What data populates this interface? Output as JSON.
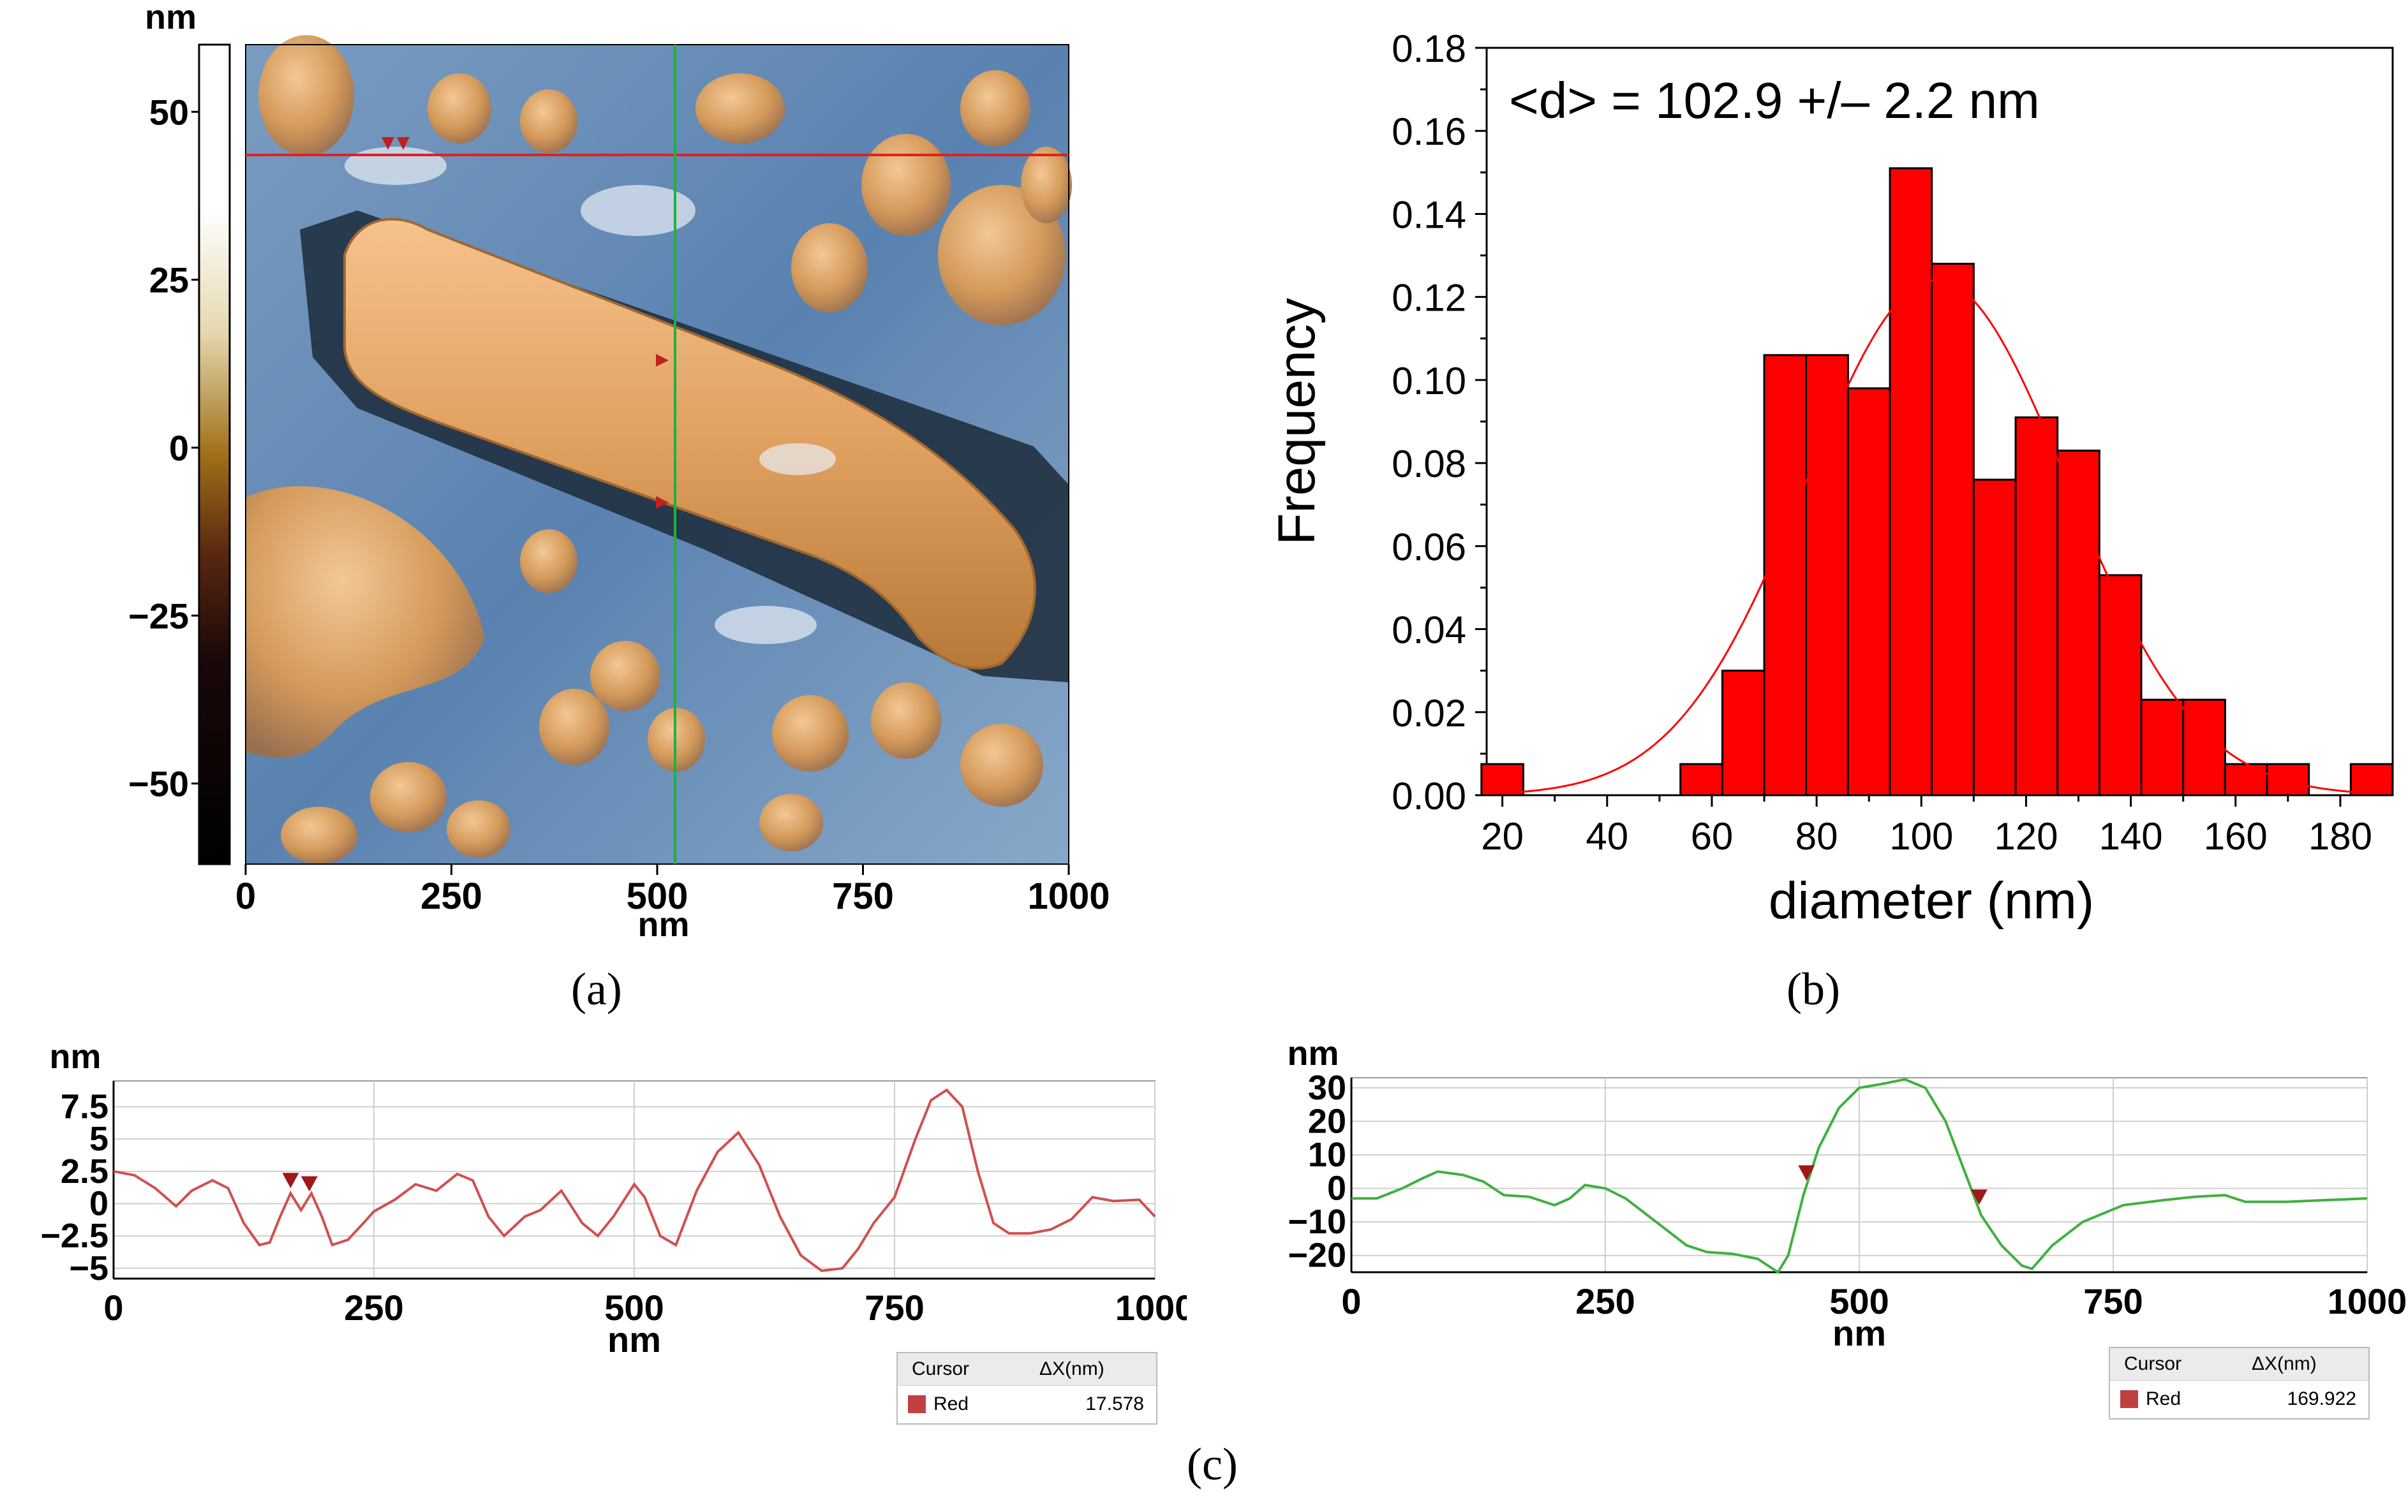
{
  "panels": {
    "a": {
      "caption": "(a)",
      "colorbar": {
        "unit": "nm",
        "ticks": [
          50,
          25,
          0,
          -25,
          -50
        ],
        "tick_labels": [
          "50",
          "25",
          "0",
          "−25",
          "−50"
        ],
        "range": [
          -62,
          60
        ]
      },
      "x_axis": {
        "ticks": [
          0,
          250,
          500,
          750,
          1000
        ],
        "tick_labels": [
          "0",
          "250",
          "500",
          "750",
          "1000"
        ],
        "unit": "nm",
        "range": [
          0,
          1000
        ]
      },
      "scan_lines": {
        "horizontal_color": "#e02020",
        "vertical_color": "#20b040"
      }
    },
    "b": {
      "caption": "(b)",
      "chart_data": {
        "type": "bar",
        "title": "",
        "annotation": "<d> = 102.9 +/– 2.2 nm",
        "xlabel": "diameter (nm)",
        "ylabel": "Frequency",
        "xlim": [
          17,
          190
        ],
        "ylim": [
          0,
          0.18
        ],
        "x_ticks": [
          20,
          40,
          60,
          80,
          100,
          120,
          140,
          160,
          180
        ],
        "y_ticks": [
          0.0,
          0.02,
          0.04,
          0.06,
          0.08,
          0.1,
          0.12,
          0.14,
          0.16,
          0.18
        ],
        "y_tick_labels": [
          "0.00",
          "0.02",
          "0.04",
          "0.06",
          "0.08",
          "0.10",
          "0.12",
          "0.14",
          "0.16",
          "0.18"
        ],
        "bin_width": 8,
        "bin_centers": [
          20,
          58,
          66,
          74,
          82,
          90,
          98,
          106,
          114,
          122,
          130,
          138,
          146,
          154,
          162,
          170,
          186
        ],
        "values": [
          0.0075,
          0.0075,
          0.03,
          0.106,
          0.106,
          0.098,
          0.151,
          0.128,
          0.076,
          0.091,
          0.083,
          0.053,
          0.023,
          0.023,
          0.0075,
          0.0075,
          0.0075
        ],
        "bar_color": "#ff0000",
        "fit": {
          "type": "gaussian",
          "mean": 102.9,
          "sigma": 25,
          "amplitude": 0.124,
          "color": "#ff0000"
        }
      }
    },
    "c": {
      "caption": "(c)",
      "left": {
        "unit": "nm",
        "y_ticks": [
          7.5,
          5,
          2.5,
          0,
          -2.5,
          -5
        ],
        "y_tick_labels": [
          "7.5",
          "5",
          "2.5",
          "0",
          "−2.5",
          "−5"
        ],
        "ylim": [
          -5.8,
          9.5
        ],
        "x_ticks": [
          0,
          250,
          500,
          750,
          1000
        ],
        "x_tick_labels": [
          "0",
          "250",
          "500",
          "750",
          "1000"
        ],
        "xlim": [
          0,
          1000
        ],
        "xlabel": "nm",
        "line_color": "#d05050",
        "cursors": [
          170,
          188
        ],
        "table": {
          "col1": "Cursor",
          "col2": "ΔX(nm)",
          "row_label": "Red",
          "row_value": "17.578",
          "swatch_color": "#c04040"
        },
        "profile": [
          [
            0,
            2.5
          ],
          [
            20,
            2.2
          ],
          [
            40,
            1.2
          ],
          [
            60,
            -0.2
          ],
          [
            75,
            1.0
          ],
          [
            95,
            1.8
          ],
          [
            110,
            1.2
          ],
          [
            125,
            -1.5
          ],
          [
            140,
            -3.2
          ],
          [
            150,
            -3.0
          ],
          [
            160,
            -1.0
          ],
          [
            170,
            0.8
          ],
          [
            180,
            -0.5
          ],
          [
            190,
            0.8
          ],
          [
            200,
            -1.0
          ],
          [
            210,
            -3.2
          ],
          [
            225,
            -2.8
          ],
          [
            240,
            -1.5
          ],
          [
            250,
            -0.6
          ],
          [
            270,
            0.3
          ],
          [
            290,
            1.5
          ],
          [
            310,
            1.0
          ],
          [
            330,
            2.3
          ],
          [
            345,
            1.8
          ],
          [
            360,
            -1.0
          ],
          [
            375,
            -2.5
          ],
          [
            395,
            -1.0
          ],
          [
            410,
            -0.5
          ],
          [
            430,
            1.0
          ],
          [
            450,
            -1.5
          ],
          [
            465,
            -2.5
          ],
          [
            480,
            -1.0
          ],
          [
            500,
            1.5
          ],
          [
            510,
            0.5
          ],
          [
            525,
            -2.5
          ],
          [
            540,
            -3.2
          ],
          [
            560,
            1.0
          ],
          [
            580,
            4.0
          ],
          [
            600,
            5.5
          ],
          [
            620,
            3.0
          ],
          [
            640,
            -1.0
          ],
          [
            660,
            -4.0
          ],
          [
            680,
            -5.2
          ],
          [
            700,
            -5.0
          ],
          [
            715,
            -3.5
          ],
          [
            730,
            -1.5
          ],
          [
            750,
            0.5
          ],
          [
            770,
            5.0
          ],
          [
            785,
            8.0
          ],
          [
            800,
            8.8
          ],
          [
            815,
            7.5
          ],
          [
            830,
            2.5
          ],
          [
            845,
            -1.5
          ],
          [
            860,
            -2.3
          ],
          [
            880,
            -2.3
          ],
          [
            900,
            -2.0
          ],
          [
            920,
            -1.2
          ],
          [
            940,
            0.5
          ],
          [
            960,
            0.2
          ],
          [
            985,
            0.3
          ],
          [
            1000,
            -1.0
          ]
        ]
      },
      "right": {
        "unit": "nm",
        "y_ticks": [
          30,
          20,
          10,
          0,
          -10,
          -20
        ],
        "y_tick_labels": [
          "30",
          "20",
          "10",
          "0",
          "−10",
          "−20"
        ],
        "ylim": [
          -25,
          33
        ],
        "x_ticks": [
          0,
          250,
          500,
          750,
          1000
        ],
        "x_tick_labels": [
          "0",
          "250",
          "500",
          "750",
          "1000"
        ],
        "xlim": [
          0,
          1000
        ],
        "xlabel": "nm",
        "line_color": "#40b040",
        "cursors": [
          448,
          618
        ],
        "table": {
          "col1": "Cursor",
          "col2": "ΔX(nm)",
          "row_label": "Red",
          "row_value": "169.922",
          "swatch_color": "#c04040"
        },
        "profile": [
          [
            0,
            -3
          ],
          [
            25,
            -3
          ],
          [
            50,
            0
          ],
          [
            70,
            3
          ],
          [
            85,
            5
          ],
          [
            110,
            4
          ],
          [
            130,
            2
          ],
          [
            150,
            -2
          ],
          [
            175,
            -2.5
          ],
          [
            200,
            -5
          ],
          [
            215,
            -3
          ],
          [
            230,
            1
          ],
          [
            250,
            0
          ],
          [
            270,
            -3
          ],
          [
            300,
            -10
          ],
          [
            330,
            -17
          ],
          [
            350,
            -19
          ],
          [
            375,
            -19.5
          ],
          [
            400,
            -21
          ],
          [
            420,
            -25
          ],
          [
            430,
            -20
          ],
          [
            445,
            -2
          ],
          [
            460,
            12
          ],
          [
            480,
            24
          ],
          [
            500,
            30
          ],
          [
            520,
            31
          ],
          [
            545,
            32.5
          ],
          [
            565,
            30
          ],
          [
            585,
            20
          ],
          [
            605,
            4
          ],
          [
            620,
            -8
          ],
          [
            640,
            -17
          ],
          [
            660,
            -23
          ],
          [
            670,
            -24
          ],
          [
            690,
            -17
          ],
          [
            720,
            -10
          ],
          [
            760,
            -5
          ],
          [
            800,
            -3.5
          ],
          [
            830,
            -2.5
          ],
          [
            860,
            -2
          ],
          [
            880,
            -4
          ],
          [
            920,
            -4
          ],
          [
            960,
            -3.5
          ],
          [
            1000,
            -3
          ]
        ]
      }
    }
  }
}
